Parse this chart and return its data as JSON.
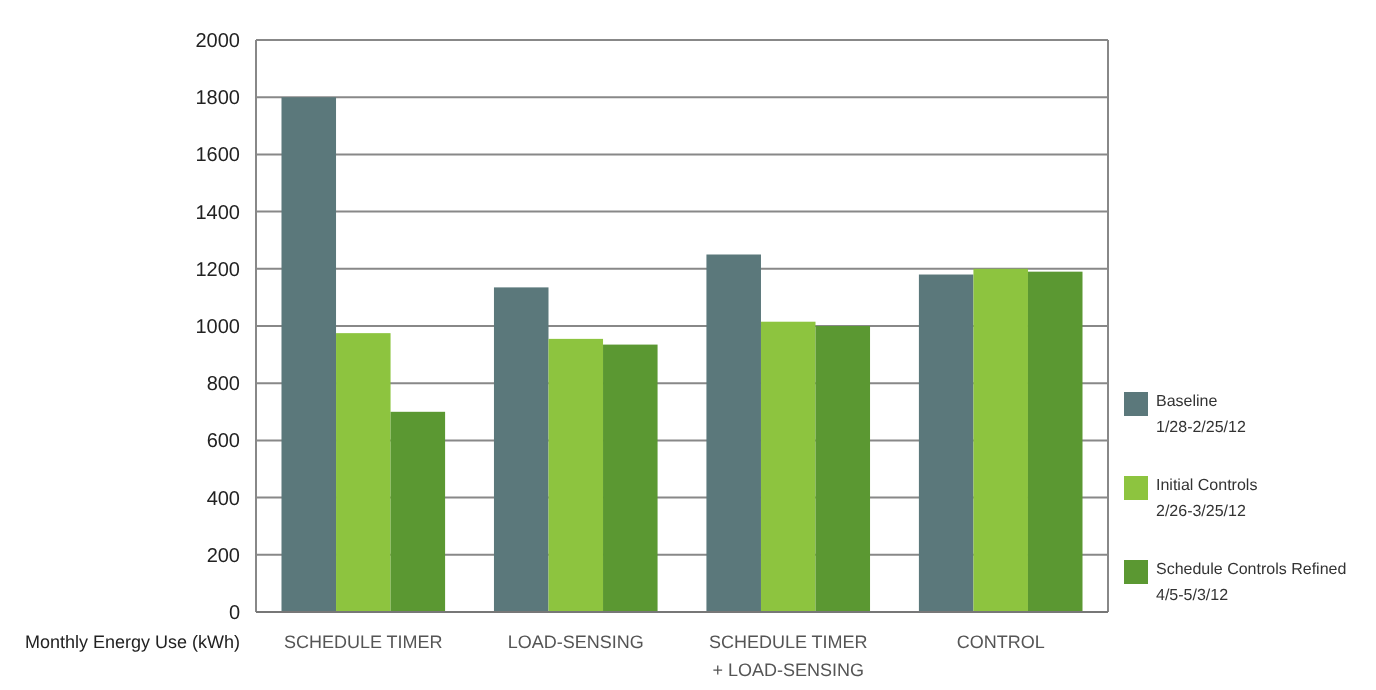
{
  "chart_data": {
    "type": "bar",
    "ylabel": "Monthly Energy Use (kWh)",
    "categories": [
      "SCHEDULE TIMER",
      "LOAD-SENSING",
      "SCHEDULE TIMER\n+ LOAD-SENSING",
      "CONTROL"
    ],
    "series": [
      {
        "name": "Baseline\n1/28-2/25/12",
        "color": "#5b787b",
        "values": [
          1800,
          1135,
          1250,
          1180
        ]
      },
      {
        "name": "Initial Controls\n2/26-3/25/12",
        "color": "#8dc43f",
        "values": [
          975,
          955,
          1015,
          1200
        ]
      },
      {
        "name": "Schedule Controls Refined\n4/5-5/3/12",
        "color": "#5b9832",
        "values": [
          700,
          935,
          1000,
          1190
        ]
      }
    ],
    "ylim": [
      0,
      2000
    ],
    "yticks": [
      0,
      200,
      400,
      600,
      800,
      1000,
      1200,
      1400,
      1600,
      1800,
      2000
    ],
    "grid": "y",
    "legend": "right"
  }
}
